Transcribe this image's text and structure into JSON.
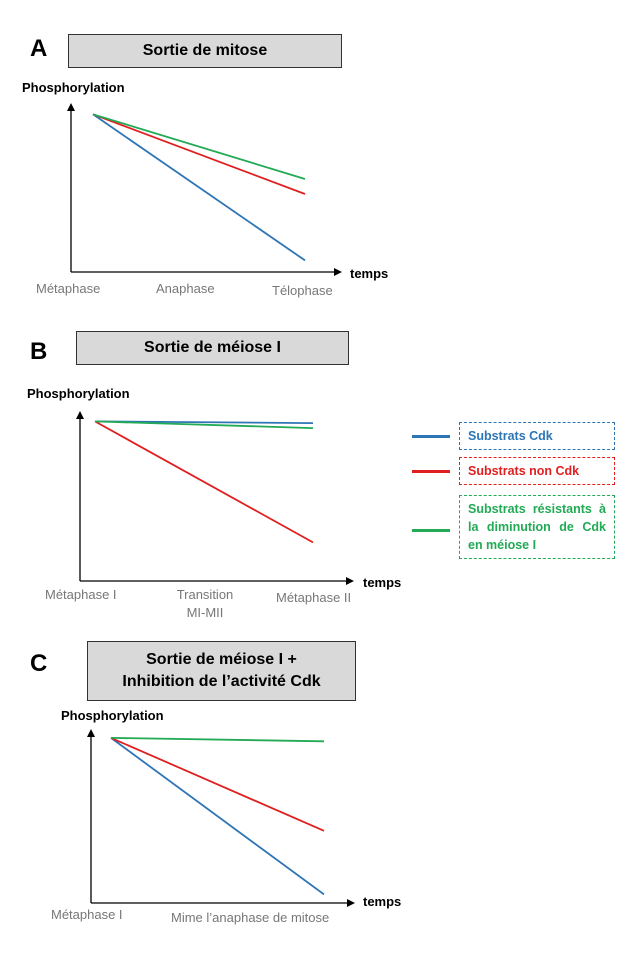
{
  "colors": {
    "cdk": "#2e75b6",
    "non_cdk": "#e02020",
    "resistant": "#22aa55",
    "axis": "#000000",
    "tick_text": "#777777",
    "title_fill": "#d9d9d9"
  },
  "legend": {
    "items": [
      {
        "key": "cdk",
        "label": "Substrats Cdk",
        "color": "#2e75b6"
      },
      {
        "key": "non_cdk",
        "label": "Substrats non Cdk",
        "color": "#e02020"
      },
      {
        "key": "resistant",
        "label": "Substrats résistants à la diminution de Cdk en méiose I",
        "color": "#22aa55"
      }
    ]
  },
  "panels": {
    "a": {
      "letter": "A",
      "title": "Sortie de mitose",
      "ylabel": "Phosphorylation",
      "xlabel": "temps",
      "ticks": [
        "Métaphase",
        "Anaphase",
        "Télophase"
      ]
    },
    "b": {
      "letter": "B",
      "title": "Sortie de méiose I",
      "ylabel": "Phosphorylation",
      "xlabel": "temps",
      "ticks": [
        "Métaphase I",
        "Transition MI-MII",
        "Métaphase II"
      ]
    },
    "c": {
      "letter": "C",
      "title_line1": "Sortie de méiose I +",
      "title_line2": "Inhibition de l’activité Cdk",
      "ylabel": "Phosphorylation",
      "xlabel": "temps",
      "ticks": [
        "Métaphase I",
        "Mime l’anaphase de mitose"
      ]
    }
  },
  "chart_data": [
    {
      "type": "line",
      "title": "Sortie de mitose",
      "ylabel": "Phosphorylation",
      "xlabel": "temps",
      "categories": [
        "Métaphase",
        "Anaphase",
        "Télophase"
      ],
      "ylim": [
        0,
        1
      ],
      "series": [
        {
          "name": "Substrats Cdk",
          "x": [
            0,
            2
          ],
          "values": [
            0.95,
            0.07
          ]
        },
        {
          "name": "Substrats non Cdk",
          "x": [
            0,
            2
          ],
          "values": [
            0.95,
            0.47
          ]
        },
        {
          "name": "Substrats résistants à la diminution de Cdk en méiose I",
          "x": [
            0,
            2
          ],
          "values": [
            0.95,
            0.56
          ]
        }
      ]
    },
    {
      "type": "line",
      "title": "Sortie de méiose I",
      "ylabel": "Phosphorylation",
      "xlabel": "temps",
      "categories": [
        "Métaphase I",
        "Transition MI-MII",
        "Métaphase II"
      ],
      "ylim": [
        0,
        1
      ],
      "series": [
        {
          "name": "Substrats Cdk",
          "x": [
            0,
            2
          ],
          "values": [
            0.95,
            0.94
          ]
        },
        {
          "name": "Substrats non Cdk",
          "x": [
            0,
            2
          ],
          "values": [
            0.95,
            0.23
          ]
        },
        {
          "name": "Substrats résistants à la diminution de Cdk en méiose I",
          "x": [
            0,
            2
          ],
          "values": [
            0.95,
            0.91
          ]
        }
      ]
    },
    {
      "type": "line",
      "title": "Sortie de méiose I + Inhibition de l’activité Cdk",
      "ylabel": "Phosphorylation",
      "xlabel": "temps",
      "categories": [
        "Métaphase I",
        "Mime l’anaphase de mitose"
      ],
      "ylim": [
        0,
        1
      ],
      "series": [
        {
          "name": "Substrats Cdk",
          "x": [
            0,
            1
          ],
          "values": [
            0.96,
            0.05
          ]
        },
        {
          "name": "Substrats non Cdk",
          "x": [
            0,
            1
          ],
          "values": [
            0.96,
            0.42
          ]
        },
        {
          "name": "Substrats résistants à la diminution de Cdk en méiose I",
          "x": [
            0,
            1
          ],
          "values": [
            0.96,
            0.94
          ]
        }
      ]
    }
  ]
}
